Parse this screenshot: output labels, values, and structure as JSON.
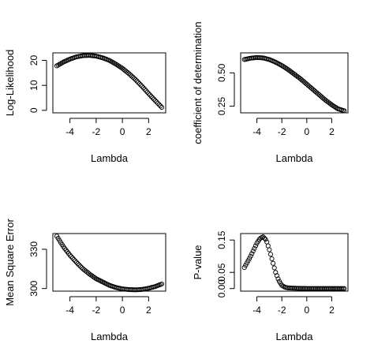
{
  "chart_data": [
    {
      "type": "scatter",
      "title": "",
      "xlabel": "Lambda",
      "ylabel": "Log-Likelihood",
      "xlim": [
        -5.3,
        3.3
      ],
      "ylim": [
        -1,
        23
      ],
      "xticks": [
        -4,
        -2,
        0,
        2
      ],
      "yticks": [
        0,
        10,
        20
      ],
      "xticklabels": [
        "-4",
        "-2",
        "0",
        "2"
      ],
      "yticklabels": [
        "0",
        "10",
        "20"
      ],
      "marker": "open-circle",
      "color": "#000000",
      "x": [
        -5.0,
        -4.5,
        -4.0,
        -3.5,
        -3.0,
        -2.5,
        -2.0,
        -1.5,
        -1.0,
        -0.5,
        0.0,
        0.5,
        1.0,
        1.5,
        2.0,
        2.5,
        3.0
      ],
      "y": [
        17.8,
        19.3,
        20.5,
        21.4,
        21.9,
        22.0,
        21.7,
        21.0,
        20.0,
        18.5,
        16.8,
        14.7,
        12.3,
        9.6,
        6.7,
        3.9,
        1.2
      ]
    },
    {
      "type": "scatter",
      "title": "",
      "xlabel": "Lambda",
      "ylabel": "coefficient of determination",
      "xlim": [
        -5.3,
        3.3
      ],
      "ylim": [
        0.2,
        0.65
      ],
      "xticks": [
        -4,
        -2,
        0,
        2
      ],
      "yticks": [
        0.25,
        0.5
      ],
      "xticklabels": [
        "-4",
        "-2",
        "0",
        "2"
      ],
      "yticklabels": [
        "0.25",
        "0.50"
      ],
      "marker": "open-circle",
      "color": "#000000",
      "x": [
        -5.0,
        -4.5,
        -4.0,
        -3.5,
        -3.0,
        -2.5,
        -2.0,
        -1.5,
        -1.0,
        -0.5,
        0.0,
        0.5,
        1.0,
        1.5,
        2.0,
        2.5,
        3.0
      ],
      "y": [
        0.6,
        0.61,
        0.615,
        0.612,
        0.6,
        0.58,
        0.555,
        0.525,
        0.49,
        0.455,
        0.415,
        0.375,
        0.335,
        0.295,
        0.26,
        0.23,
        0.215
      ]
    },
    {
      "type": "scatter",
      "title": "",
      "xlabel": "Lambda",
      "ylabel": "Mean Square Error",
      "xlim": [
        -5.3,
        3.3
      ],
      "ylim": [
        298,
        342
      ],
      "xticks": [
        -4,
        -2,
        0,
        2
      ],
      "yticks": [
        300,
        330
      ],
      "xticklabels": [
        "-4",
        "-2",
        "0",
        "2"
      ],
      "yticklabels": [
        "300",
        "330"
      ],
      "marker": "open-circle",
      "color": "#000000",
      "x": [
        -5.0,
        -4.5,
        -4.0,
        -3.5,
        -3.0,
        -2.5,
        -2.0,
        -1.5,
        -1.0,
        -0.5,
        0.0,
        0.5,
        1.0,
        1.5,
        2.0,
        2.5,
        3.0
      ],
      "y": [
        340.0,
        332.0,
        325.5,
        320.0,
        315.0,
        311.0,
        307.5,
        305.0,
        302.5,
        300.8,
        299.7,
        299.2,
        299.0,
        299.3,
        300.2,
        301.5,
        303.5
      ]
    },
    {
      "type": "scatter",
      "title": "",
      "xlabel": "Lambda",
      "ylabel": "P-value",
      "xlim": [
        -5.3,
        3.3
      ],
      "ylim": [
        -0.008,
        0.17
      ],
      "xticks": [
        -4,
        -2,
        0,
        2
      ],
      "yticks": [
        0,
        0.05,
        0.15
      ],
      "xticklabels": [
        "-4",
        "-2",
        "0",
        "2"
      ],
      "yticklabels": [
        "0.00",
        "0.05",
        "0.15"
      ],
      "marker": "open-circle",
      "color": "#000000",
      "x": [
        -5.0,
        -4.5,
        -4.0,
        -3.75,
        -3.5,
        -3.25,
        -3.0,
        -2.75,
        -2.5,
        -2.25,
        -2.0,
        -1.75,
        -1.5,
        -1.0,
        -0.5,
        0.0,
        0.5,
        1.0,
        1.5,
        2.0,
        2.5,
        3.0
      ],
      "y": [
        0.065,
        0.1,
        0.14,
        0.155,
        0.16,
        0.15,
        0.12,
        0.085,
        0.05,
        0.025,
        0.01,
        0.004,
        0.002,
        0.001,
        0.0005,
        0.0002,
        0.0001,
        0.0,
        0.0,
        0.0,
        0.0,
        0.0
      ]
    }
  ]
}
